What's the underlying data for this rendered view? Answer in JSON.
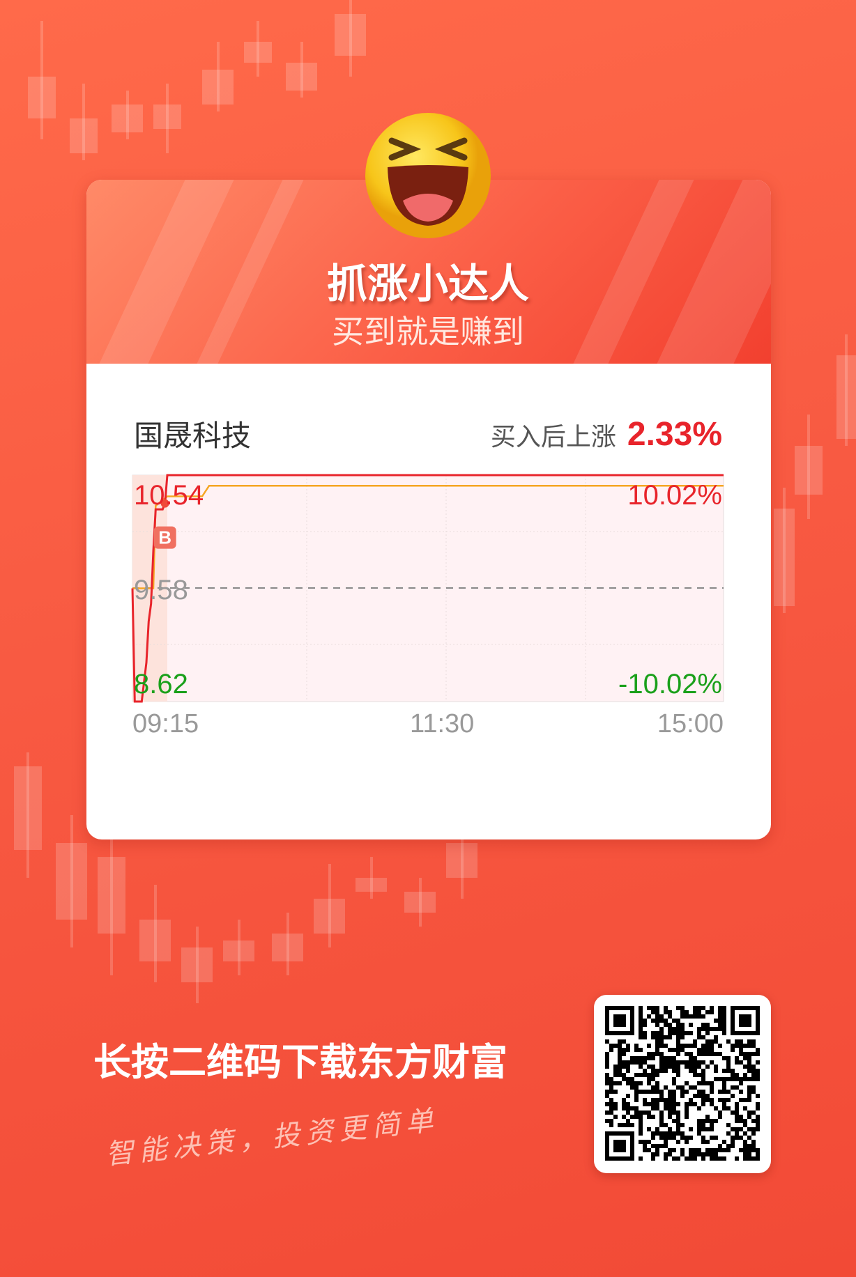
{
  "header": {
    "title": "抓涨小达人",
    "subtitle": "买到就是赚到"
  },
  "stock": {
    "name": "国晟科技",
    "gain_label": "买入后上涨",
    "gain_value": "2.33%"
  },
  "chart_data": {
    "type": "line",
    "price_high": "10.54",
    "price_prev_close": "9.58",
    "price_low": "8.62",
    "pct_high": "10.02%",
    "pct_low": "-10.02%",
    "ylim": [
      8.62,
      10.54
    ],
    "x_ticks": [
      "09:15",
      "11:30",
      "15:00"
    ],
    "series": [
      {
        "role": "price",
        "color": "#e8242b",
        "points": [
          [
            "09:15",
            9.58
          ],
          [
            "09:16",
            8.62
          ],
          [
            "09:19",
            8.62
          ],
          [
            "09:21",
            8.95
          ],
          [
            "09:22",
            9.3
          ],
          [
            "09:23",
            9.45
          ],
          [
            "09:24",
            9.9
          ],
          [
            "09:25",
            10.25
          ],
          [
            "09:28",
            10.25
          ],
          [
            "09:29",
            10.3
          ],
          [
            "09:30",
            10.54
          ],
          [
            "15:00",
            10.54
          ]
        ]
      },
      {
        "role": "average",
        "color": "#f5a623",
        "points": [
          [
            "09:15",
            9.58
          ],
          [
            "09:24",
            9.58
          ],
          [
            "09:25",
            10.28
          ],
          [
            "09:30",
            10.36
          ],
          [
            "09:45",
            10.36
          ],
          [
            "09:48",
            10.45
          ],
          [
            "15:00",
            10.45
          ]
        ]
      }
    ],
    "buy_marker": {
      "label": "B",
      "time": "09:29",
      "price": 10.3
    }
  },
  "footer": {
    "cta": "长按二维码下载东方财富",
    "slogan": "智能决策，投资更简单"
  },
  "colors": {
    "up": "#e8242b",
    "down": "#1aa01a",
    "neutral": "#999999",
    "brand": "#f5533d"
  }
}
